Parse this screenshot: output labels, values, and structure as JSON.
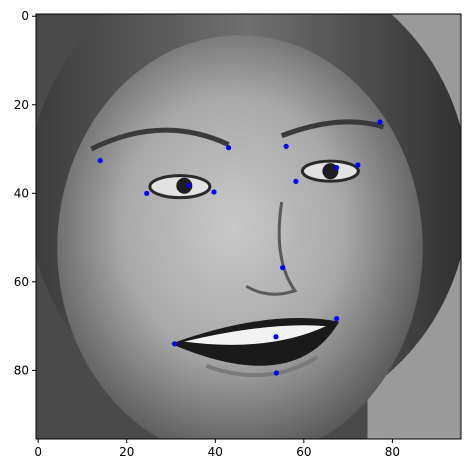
{
  "chart_data": {
    "type": "scatter",
    "title": "",
    "xlabel": "",
    "ylabel": "",
    "background_image": "grayscale-face-photo",
    "image_size": [
      96,
      96
    ],
    "xlim": [
      -0.5,
      95.5
    ],
    "ylim": [
      95.5,
      -0.5
    ],
    "y_inverted": true,
    "grid": false,
    "xticks": [
      0,
      20,
      40,
      60,
      80
    ],
    "yticks": [
      0,
      20,
      40,
      60,
      80
    ],
    "marker_color": "#0000ff",
    "points": [
      {
        "x": 24.5,
        "y": 40.0
      },
      {
        "x": 34.0,
        "y": 38.2
      },
      {
        "x": 39.7,
        "y": 39.7
      },
      {
        "x": 14.0,
        "y": 32.6
      },
      {
        "x": 43.0,
        "y": 29.7
      },
      {
        "x": 56.0,
        "y": 29.4
      },
      {
        "x": 58.2,
        "y": 37.3
      },
      {
        "x": 67.4,
        "y": 34.2
      },
      {
        "x": 72.2,
        "y": 33.6
      },
      {
        "x": 77.2,
        "y": 23.9
      },
      {
        "x": 55.2,
        "y": 56.8
      },
      {
        "x": 30.8,
        "y": 74.0
      },
      {
        "x": 53.7,
        "y": 72.4
      },
      {
        "x": 67.4,
        "y": 68.3
      },
      {
        "x": 53.8,
        "y": 80.6
      }
    ]
  }
}
